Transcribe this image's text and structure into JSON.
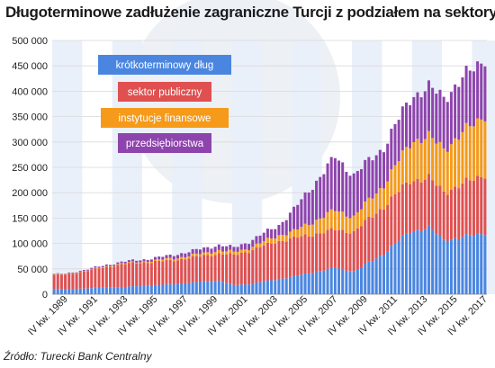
{
  "chart_data": {
    "type": "bar",
    "stacked": true,
    "title": "Długoterminowe zadłużenie zagraniczne Turcji z podziałem na sektory",
    "source": "Źródło: Turecki Bank Centralny",
    "ylim": [
      0,
      500000
    ],
    "y_ticks": [
      "0",
      "50 000",
      "100 000",
      "150 000",
      "200 000",
      "250 000",
      "300 000",
      "350 000",
      "400 000",
      "450 000",
      "500 000"
    ],
    "x_tick_labels": [
      "IV kw. 1989",
      "IV kw. 1991",
      "IV kw. 1993",
      "IV kw. 1995",
      "IV kw. 1997",
      "IV kw. 1999",
      "IV kw. 2001",
      "IV kw. 2003",
      "IV kw. 2005",
      "IV kw. 2007",
      "IV kw. 2009",
      "IV kw. 2011",
      "IV kw. 2013",
      "IV kw. 2015",
      "IV kw. 2017"
    ],
    "legend_position": "top-left",
    "grid": true,
    "series": [
      {
        "name": "krótkoterminowy dług",
        "color": "#4a86e0",
        "anchors": [
          [
            1989.75,
            10000
          ],
          [
            1993.5,
            14000
          ],
          [
            1997,
            20000
          ],
          [
            2000,
            27000
          ],
          [
            2001,
            18000
          ],
          [
            2002,
            20000
          ],
          [
            2005,
            35000
          ],
          [
            2007.75,
            52000
          ],
          [
            2009,
            45000
          ],
          [
            2011,
            80000
          ],
          [
            2012.75,
            125000
          ],
          [
            2014,
            130000
          ],
          [
            2015,
            108000
          ],
          [
            2016,
            110000
          ],
          [
            2017.75,
            122000
          ]
        ]
      },
      {
        "name": "sektor publiczny",
        "color": "#e05050",
        "anchors": [
          [
            1989.75,
            28000
          ],
          [
            1993.5,
            45000
          ],
          [
            1997,
            47000
          ],
          [
            2000,
            53000
          ],
          [
            2002,
            65000
          ],
          [
            2004,
            75000
          ],
          [
            2007.75,
            75000
          ],
          [
            2009,
            78000
          ],
          [
            2011,
            93000
          ],
          [
            2013,
            100000
          ],
          [
            2015,
            95000
          ],
          [
            2017.75,
            116000
          ]
        ]
      },
      {
        "name": "instytucje finansowe",
        "color": "#f59a1a",
        "anchors": [
          [
            1989.75,
            1000
          ],
          [
            1995,
            2000
          ],
          [
            2000,
            6000
          ],
          [
            2002,
            6000
          ],
          [
            2005,
            14000
          ],
          [
            2007.75,
            38000
          ],
          [
            2009,
            30000
          ],
          [
            2011,
            43000
          ],
          [
            2013,
            78000
          ],
          [
            2015,
            85000
          ],
          [
            2017.75,
            118000
          ]
        ]
      },
      {
        "name": "przedsiębiorstwa",
        "color": "#8e44ad",
        "anchors": [
          [
            1989.75,
            1000
          ],
          [
            1995,
            4000
          ],
          [
            2000,
            11000
          ],
          [
            2001,
            9000
          ],
          [
            2004,
            20000
          ],
          [
            2007.75,
            105000
          ],
          [
            2009,
            82000
          ],
          [
            2011,
            74000
          ],
          [
            2013,
            90000
          ],
          [
            2015,
            102000
          ],
          [
            2017.75,
            113000
          ]
        ]
      }
    ]
  }
}
